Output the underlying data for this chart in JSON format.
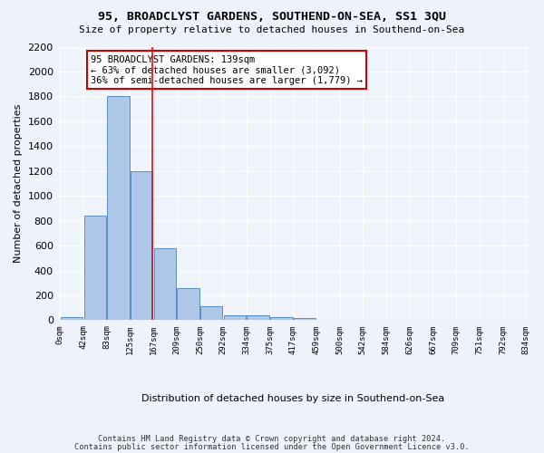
{
  "title": "95, BROADCLYST GARDENS, SOUTHEND-ON-SEA, SS1 3QU",
  "subtitle": "Size of property relative to detached houses in Southend-on-Sea",
  "xlabel": "Distribution of detached houses by size in Southend-on-Sea",
  "ylabel": "Number of detached properties",
  "bar_values": [
    25,
    840,
    1800,
    1200,
    580,
    255,
    115,
    40,
    40,
    25,
    15,
    0,
    0,
    0,
    0,
    0,
    0,
    0,
    0,
    0
  ],
  "bin_labels": [
    "0sqm",
    "42sqm",
    "83sqm",
    "125sqm",
    "167sqm",
    "209sqm",
    "250sqm",
    "292sqm",
    "334sqm",
    "375sqm",
    "417sqm",
    "459sqm",
    "500sqm",
    "542sqm",
    "584sqm",
    "626sqm",
    "667sqm",
    "709sqm",
    "751sqm",
    "792sqm",
    "834sqm"
  ],
  "bar_color": "#aec6e8",
  "bar_edge_color": "#5a8fc2",
  "red_line_bin_index": 3,
  "annotation_line1": "95 BROADCLYST GARDENS: 139sqm",
  "annotation_line2": "← 63% of detached houses are smaller (3,092)",
  "annotation_line3": "36% of semi-detached houses are larger (1,779) →",
  "annotation_box_color": "#ffffff",
  "annotation_box_edge": "#cc0000",
  "ylim": [
    0,
    2200
  ],
  "yticks": [
    0,
    200,
    400,
    600,
    800,
    1000,
    1200,
    1400,
    1600,
    1800,
    2000,
    2200
  ],
  "footer1": "Contains HM Land Registry data © Crown copyright and database right 2024.",
  "footer2": "Contains public sector information licensed under the Open Government Licence v3.0.",
  "bg_color": "#eef2fb",
  "plot_bg_color": "#f0f4fc"
}
